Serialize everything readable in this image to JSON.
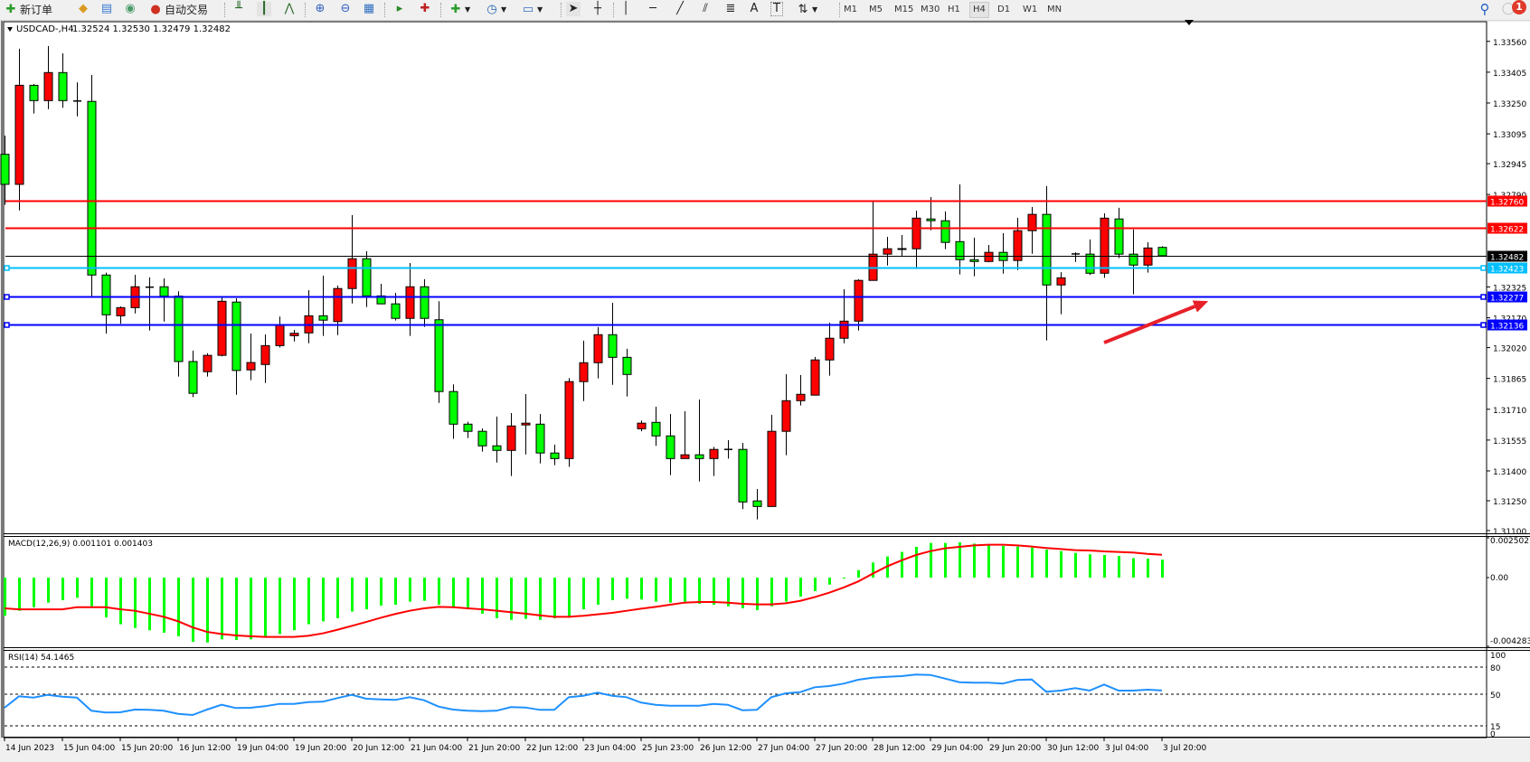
{
  "toolbar": {
    "new_order_label": "新订单",
    "auto_trading_label": "自动交易",
    "timeframes": [
      "M1",
      "M5",
      "M15",
      "M30",
      "H1",
      "H4",
      "D1",
      "W1",
      "MN"
    ],
    "active_timeframe": "H4",
    "text_tool_label": "A",
    "label_tool_label": "T",
    "notification_count": "1",
    "icons": [
      "new-order-icon",
      "metaeditor-icon",
      "market-watch-icon",
      "signals-icon",
      "auto-trading-icon",
      "bar-chart-icon",
      "candlestick-icon",
      "line-chart-icon",
      "zoom-in-icon",
      "zoom-out-icon",
      "tile-windows-icon",
      "autoscroll-icon",
      "chart-shift-icon",
      "indicators-icon",
      "periods-icon",
      "templates-icon",
      "cursor-icon",
      "crosshair-icon",
      "vertical-line-icon",
      "horizontal-line-icon",
      "trendline-icon",
      "equidistant-channel-icon",
      "fibonacci-icon",
      "text-icon",
      "text-label-icon",
      "arrows-icon",
      "search-icon",
      "notification-icon"
    ]
  },
  "chart_data": {
    "type": "candlestick",
    "symbol_label": "USDCAD-,H4",
    "ohlc_label": "1.32524 1.32530 1.32479 1.32482",
    "bull_color": "#ff0000",
    "bear_color": "#00ff00",
    "ylim": [
      1.311,
      1.3356
    ],
    "y_tick_labels": [
      "1.33560",
      "1.33405",
      "1.33250",
      "1.33095",
      "1.32945",
      "1.32790",
      "1.32325",
      "1.32170",
      "1.32020",
      "1.31865",
      "1.31710",
      "1.31555",
      "1.31400",
      "1.31250",
      "1.31100"
    ],
    "x_tick_labels": [
      {
        "bar": 0,
        "label": "14 Jun 2023"
      },
      {
        "bar": 4,
        "label": "15 Jun 04:00"
      },
      {
        "bar": 8,
        "label": "15 Jun 20:00"
      },
      {
        "bar": 12,
        "label": "16 Jun 12:00"
      },
      {
        "bar": 16,
        "label": "19 Jun 04:00"
      },
      {
        "bar": 20,
        "label": "19 Jun 20:00"
      },
      {
        "bar": 24,
        "label": "20 Jun 12:00"
      },
      {
        "bar": 28,
        "label": "21 Jun 04:00"
      },
      {
        "bar": 32,
        "label": "21 Jun 20:00"
      },
      {
        "bar": 36,
        "label": "22 Jun 12:00"
      },
      {
        "bar": 40,
        "label": "23 Jun 04:00"
      },
      {
        "bar": 44,
        "label": "25 Jun 23:00"
      },
      {
        "bar": 48,
        "label": "26 Jun 12:00"
      },
      {
        "bar": 52,
        "label": "27 Jun 04:00"
      },
      {
        "bar": 56,
        "label": "27 Jun 20:00"
      },
      {
        "bar": 60,
        "label": "28 Jun 12:00"
      },
      {
        "bar": 64,
        "label": "29 Jun 04:00"
      },
      {
        "bar": 68,
        "label": "29 Jun 20:00"
      },
      {
        "bar": 72,
        "label": "30 Jun 12:00"
      },
      {
        "bar": 76,
        "label": "3 Jul 04:00"
      },
      {
        "bar": 80,
        "label": "3 Jul 20:00"
      }
    ],
    "candles_ohlc": [
      [
        1.32992,
        1.33086,
        1.32738,
        1.32841
      ],
      [
        1.32841,
        1.33523,
        1.3271,
        1.33339
      ],
      [
        1.33339,
        1.33345,
        1.33197,
        1.33262
      ],
      [
        1.33262,
        1.33536,
        1.33219,
        1.33403
      ],
      [
        1.33403,
        1.335,
        1.33226,
        1.33262
      ],
      [
        1.3326,
        1.33354,
        1.33183,
        1.3326
      ],
      [
        1.33258,
        1.33391,
        1.3227,
        1.32385
      ],
      [
        1.32385,
        1.32397,
        1.3209,
        1.32185
      ],
      [
        1.3218,
        1.32227,
        1.3214,
        1.32221
      ],
      [
        1.32221,
        1.32386,
        1.32192,
        1.32326
      ],
      [
        1.32324,
        1.32373,
        1.32106,
        1.32324
      ],
      [
        1.32326,
        1.32368,
        1.32151,
        1.32279
      ],
      [
        1.32279,
        1.32303,
        1.31874,
        1.3195
      ],
      [
        1.3195,
        1.32005,
        1.31771,
        1.3179
      ],
      [
        1.31899,
        1.31992,
        1.31874,
        1.31981
      ],
      [
        1.31981,
        1.32273,
        1.31976,
        1.32253
      ],
      [
        1.32249,
        1.32268,
        1.31783,
        1.31905
      ],
      [
        1.31908,
        1.32091,
        1.31856,
        1.31945
      ],
      [
        1.31935,
        1.32086,
        1.31842,
        1.3203
      ],
      [
        1.3203,
        1.32176,
        1.32021,
        1.32136
      ],
      [
        1.3208,
        1.32109,
        1.32051,
        1.32092
      ],
      [
        1.32094,
        1.32309,
        1.32042,
        1.3218
      ],
      [
        1.3218,
        1.32382,
        1.32079,
        1.32158
      ],
      [
        1.32151,
        1.32332,
        1.32083,
        1.32317
      ],
      [
        1.32317,
        1.32686,
        1.32242,
        1.32467
      ],
      [
        1.32467,
        1.32505,
        1.32224,
        1.3228
      ],
      [
        1.3228,
        1.32341,
        1.3224,
        1.3224
      ],
      [
        1.3224,
        1.32295,
        1.32156,
        1.32167
      ],
      [
        1.32167,
        1.32445,
        1.32079,
        1.32326
      ],
      [
        1.32326,
        1.32364,
        1.32124,
        1.32167
      ],
      [
        1.3216,
        1.32253,
        1.31742,
        1.31799
      ],
      [
        1.31799,
        1.31835,
        1.31561,
        1.31635
      ],
      [
        1.31635,
        1.31647,
        1.31565,
        1.31599
      ],
      [
        1.31599,
        1.31614,
        1.31497,
        1.31526
      ],
      [
        1.31526,
        1.31673,
        1.31442,
        1.31503
      ],
      [
        1.31503,
        1.31691,
        1.31374,
        1.31626
      ],
      [
        1.31631,
        1.31786,
        1.31483,
        1.3164
      ],
      [
        1.31635,
        1.31686,
        1.31438,
        1.3149
      ],
      [
        1.3149,
        1.31532,
        1.31429,
        1.31462
      ],
      [
        1.31462,
        1.31867,
        1.3142,
        1.31849
      ],
      [
        1.31849,
        1.32055,
        1.31751,
        1.31944
      ],
      [
        1.31944,
        1.32123,
        1.31865,
        1.32085
      ],
      [
        1.32085,
        1.32245,
        1.31833,
        1.31971
      ],
      [
        1.31971,
        1.32014,
        1.31774,
        1.31885
      ],
      [
        1.31612,
        1.31653,
        1.31599,
        1.3164
      ],
      [
        1.31644,
        1.31723,
        1.31526,
        1.31576
      ],
      [
        1.31576,
        1.31686,
        1.31379,
        1.31462
      ],
      [
        1.31462,
        1.317,
        1.31462,
        1.31481
      ],
      [
        1.31481,
        1.31759,
        1.31347,
        1.31462
      ],
      [
        1.31462,
        1.31521,
        1.31374,
        1.31508
      ],
      [
        1.31508,
        1.31555,
        1.31462,
        1.31508
      ],
      [
        1.31508,
        1.31541,
        1.31208,
        1.31244
      ],
      [
        1.31249,
        1.31309,
        1.31156,
        1.31221
      ],
      [
        1.31221,
        1.31682,
        1.31221,
        1.31599
      ],
      [
        1.31599,
        1.31886,
        1.31479,
        1.31753
      ],
      [
        1.31753,
        1.31882,
        1.31729,
        1.31785
      ],
      [
        1.31781,
        1.31973,
        1.31781,
        1.31958
      ],
      [
        1.31958,
        1.32145,
        1.31879,
        1.32067
      ],
      [
        1.32067,
        1.32314,
        1.32042,
        1.32153
      ],
      [
        1.32153,
        1.32364,
        1.32106,
        1.32358
      ],
      [
        1.32358,
        1.32755,
        1.32358,
        1.3249
      ],
      [
        1.3249,
        1.32577,
        1.32433,
        1.32517
      ],
      [
        1.32518,
        1.32586,
        1.3248,
        1.32517
      ],
      [
        1.32517,
        1.32709,
        1.32415,
        1.32671
      ],
      [
        1.32667,
        1.32777,
        1.3261,
        1.32658
      ],
      [
        1.32658,
        1.32705,
        1.32515,
        1.32549
      ],
      [
        1.32553,
        1.32841,
        1.32388,
        1.32462
      ],
      [
        1.32462,
        1.32573,
        1.32379,
        1.32453
      ],
      [
        1.32453,
        1.32536,
        1.32449,
        1.32499
      ],
      [
        1.32499,
        1.32595,
        1.32392,
        1.32458
      ],
      [
        1.32458,
        1.32673,
        1.3241,
        1.32608
      ],
      [
        1.32608,
        1.32727,
        1.32492,
        1.3269
      ],
      [
        1.3269,
        1.32832,
        1.32056,
        1.32335
      ],
      [
        1.32335,
        1.32399,
        1.32188,
        1.32371
      ],
      [
        1.32491,
        1.32499,
        1.32451,
        1.32491
      ],
      [
        1.3249,
        1.32564,
        1.32385,
        1.32394
      ],
      [
        1.32394,
        1.32695,
        1.32371,
        1.32671
      ],
      [
        1.32667,
        1.32723,
        1.3247,
        1.3249
      ],
      [
        1.3249,
        1.32614,
        1.32288,
        1.32435
      ],
      [
        1.32435,
        1.3255,
        1.32397,
        1.32521
      ],
      [
        1.32524,
        1.3253,
        1.32479,
        1.32482
      ]
    ],
    "horizontal_lines": [
      {
        "price": 1.3276,
        "label": "1.32760",
        "color": "#ff0000"
      },
      {
        "price": 1.32622,
        "label": "1.32622",
        "color": "#ff0000"
      },
      {
        "price": 1.32482,
        "label": "1.32482",
        "color": "#000000"
      },
      {
        "price": 1.32423,
        "label": "1.32423",
        "color": "#00bfff"
      },
      {
        "price": 1.32277,
        "label": "1.32277",
        "color": "#0000ff"
      },
      {
        "price": 1.32136,
        "label": "1.32136",
        "color": "#0000ff"
      }
    ],
    "annotations": [
      {
        "type": "arrow",
        "color": "#e8202a",
        "from": {
          "bar": 76,
          "price": 1.32045
        },
        "to": {
          "bar": 83.2,
          "price": 1.32254
        }
      }
    ],
    "macd": {
      "label": "MACD(12,26,9) 0.001101 0.001403",
      "ylim": [
        -0.004283,
        0.002502
      ],
      "tick_labels": [
        "0.002502",
        "0.00",
        "-0.004283"
      ],
      "histogram_color": "#00ff00",
      "signal_color": "#ff0000",
      "histogram": [
        -0.00235,
        -0.00204,
        -0.00182,
        -0.00154,
        -0.00139,
        -0.00124,
        -0.00176,
        -0.00245,
        -0.00287,
        -0.0031,
        -0.00324,
        -0.00339,
        -0.00361,
        -0.00395,
        -0.00399,
        -0.0038,
        -0.00384,
        -0.0038,
        -0.00365,
        -0.00347,
        -0.00324,
        -0.00287,
        -0.00269,
        -0.0025,
        -0.00209,
        -0.00195,
        -0.00172,
        -0.00167,
        -0.00148,
        -0.00143,
        -0.00167,
        -0.0018,
        -0.00195,
        -0.00222,
        -0.0025,
        -0.0026,
        -0.00254,
        -0.0026,
        -0.0025,
        -0.00247,
        -0.00195,
        -0.00167,
        -0.00139,
        -0.0013,
        -0.00135,
        -0.00148,
        -0.00154,
        -0.00148,
        -0.00161,
        -0.00167,
        -0.00176,
        -0.00189,
        -0.002,
        -0.00176,
        -0.00148,
        -0.00117,
        -0.00083,
        -0.00043,
        -4e-05,
        0.00046,
        0.00093,
        0.0013,
        0.00158,
        0.00189,
        0.00213,
        0.00213,
        0.00217,
        0.00209,
        0.00198,
        0.00195,
        0.00191,
        0.00185,
        0.00172,
        0.00163,
        0.00152,
        0.00143,
        0.00139,
        0.00133,
        0.0012,
        0.00117,
        0.001101
      ],
      "signal": [
        -0.00189,
        -0.00195,
        -0.00195,
        -0.00195,
        -0.00195,
        -0.00182,
        -0.00182,
        -0.00182,
        -0.00195,
        -0.00204,
        -0.00222,
        -0.00241,
        -0.00269,
        -0.00306,
        -0.00334,
        -0.00347,
        -0.00356,
        -0.00361,
        -0.00365,
        -0.00365,
        -0.00365,
        -0.00358,
        -0.00343,
        -0.00321,
        -0.00297,
        -0.00273,
        -0.00247,
        -0.00224,
        -0.00204,
        -0.00189,
        -0.0018,
        -0.00182,
        -0.00189,
        -0.00195,
        -0.00204,
        -0.00213,
        -0.00222,
        -0.00232,
        -0.00241,
        -0.00241,
        -0.00235,
        -0.00226,
        -0.00217,
        -0.00204,
        -0.00191,
        -0.0018,
        -0.00167,
        -0.00154,
        -0.0015,
        -0.0015,
        -0.00154,
        -0.00161,
        -0.00165,
        -0.00165,
        -0.00158,
        -0.00143,
        -0.0012,
        -0.00093,
        -0.00061,
        -0.00024,
        0.00024,
        0.00069,
        0.00106,
        0.00139,
        0.00163,
        0.0018,
        0.00189,
        0.00198,
        0.00202,
        0.00202,
        0.00198,
        0.00191,
        0.00182,
        0.00176,
        0.00169,
        0.00167,
        0.00161,
        0.00158,
        0.00154,
        0.00146,
        0.001403
      ]
    },
    "rsi": {
      "label": "RSI(14) 54.1465",
      "ylim": [
        0,
        100
      ],
      "levels": [
        80,
        50,
        15
      ],
      "tick_labels": [
        "100",
        "80",
        "50",
        "15",
        "0"
      ],
      "color": "#1e90ff",
      "values": [
        35,
        47.7,
        46.3,
        49.3,
        47.3,
        46.3,
        31.7,
        29.7,
        30,
        33,
        32.7,
        31.7,
        28.3,
        27,
        33,
        38.3,
        34.7,
        35,
        36.7,
        39.3,
        39.3,
        41.3,
        41.7,
        45.7,
        49.3,
        45,
        44.3,
        43.7,
        46.7,
        43.3,
        36.3,
        33,
        31.7,
        31.3,
        31.7,
        35.7,
        35.3,
        32.7,
        32.7,
        46.7,
        48.3,
        51.7,
        48.3,
        46.7,
        40.7,
        38.3,
        37.3,
        37.3,
        37.3,
        39.3,
        38.3,
        32.3,
        32.7,
        46.7,
        51,
        52.3,
        57.7,
        59,
        61.7,
        66,
        68.3,
        69.3,
        70,
        71.7,
        71.3,
        67.3,
        63.3,
        62.7,
        62.7,
        61.7,
        65.7,
        66.3,
        52.7,
        54,
        56.7,
        54,
        60.7,
        54,
        54,
        55,
        54.1465
      ]
    }
  }
}
